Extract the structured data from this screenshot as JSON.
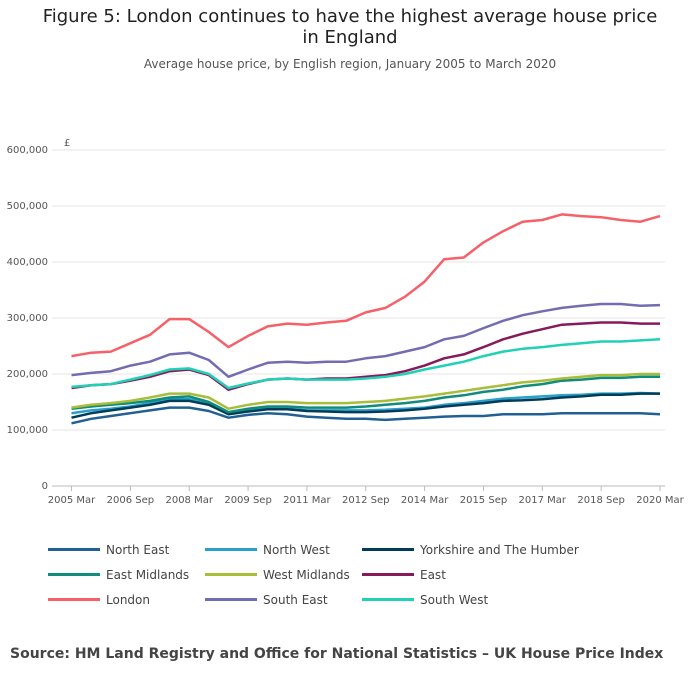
{
  "chart_data": {
    "type": "line",
    "title": "Figure 5: London continues to have the highest average house price in England",
    "subtitle": "Average house price, by English region, January 2005 to March 2020",
    "y_unit_label": "£",
    "source": "Source: HM Land Registry and Office for National Statistics – UK House Price Index",
    "x": [
      "2005-03",
      "2005-09",
      "2006-03",
      "2006-09",
      "2007-03",
      "2007-09",
      "2008-03",
      "2008-09",
      "2009-03",
      "2009-09",
      "2010-03",
      "2010-09",
      "2011-03",
      "2011-09",
      "2012-03",
      "2012-09",
      "2013-03",
      "2013-09",
      "2014-03",
      "2014-09",
      "2015-03",
      "2015-09",
      "2016-03",
      "2016-09",
      "2017-03",
      "2017-09",
      "2018-03",
      "2018-09",
      "2019-03",
      "2019-09",
      "2020-03"
    ],
    "xlim": [
      "2005-01",
      "2020-03"
    ],
    "xticks": [
      {
        "value": "2005-03",
        "label": "2005 Mar"
      },
      {
        "value": "2006-09",
        "label": "2006 Sep"
      },
      {
        "value": "2008-03",
        "label": "2008 Mar"
      },
      {
        "value": "2009-09",
        "label": "2009 Sep"
      },
      {
        "value": "2011-03",
        "label": "2011 Mar"
      },
      {
        "value": "2012-09",
        "label": "2012 Sep"
      },
      {
        "value": "2014-03",
        "label": "2014 Mar"
      },
      {
        "value": "2015-09",
        "label": "2015 Sep"
      },
      {
        "value": "2017-03",
        "label": "2017 Mar"
      },
      {
        "value": "2018-09",
        "label": "2018 Sep"
      },
      {
        "value": "2020-03",
        "label": "2020 Mar"
      }
    ],
    "ylim": [
      0,
      600000
    ],
    "yticks": [
      0,
      {
        "value": 100000,
        "label": "100,000"
      },
      {
        "value": 200000,
        "label": "200,000"
      },
      {
        "value": 300000,
        "label": "300,000"
      },
      {
        "value": 400000,
        "label": "400,000"
      },
      {
        "value": 500000,
        "label": "500,000"
      },
      {
        "value": 600000,
        "label": "600,000"
      }
    ],
    "grid": true,
    "series": [
      {
        "name": "North East",
        "color": "#206095",
        "values": [
          112000,
          120000,
          125000,
          130000,
          135000,
          140000,
          140000,
          134000,
          122000,
          127000,
          130000,
          128000,
          124000,
          122000,
          120000,
          120000,
          118000,
          120000,
          122000,
          124000,
          125000,
          125000,
          128000,
          128000,
          128000,
          130000,
          130000,
          130000,
          130000,
          130000,
          128000
        ]
      },
      {
        "name": "North West",
        "color": "#27a0cc",
        "values": [
          130000,
          135000,
          138000,
          142000,
          148000,
          155000,
          155000,
          148000,
          130000,
          135000,
          138000,
          138000,
          135000,
          135000,
          135000,
          135000,
          136000,
          138000,
          140000,
          145000,
          148000,
          152000,
          156000,
          158000,
          160000,
          162000,
          163000,
          165000,
          165000,
          166000,
          165000
        ]
      },
      {
        "name": "Yorkshire and The Humber",
        "color": "#003c57",
        "values": [
          122000,
          130000,
          135000,
          140000,
          145000,
          152000,
          152000,
          145000,
          128000,
          133000,
          137000,
          137000,
          134000,
          133000,
          132000,
          132000,
          133000,
          135000,
          138000,
          142000,
          145000,
          148000,
          152000,
          153000,
          155000,
          158000,
          160000,
          163000,
          163000,
          165000,
          165000
        ]
      },
      {
        "name": "East Midlands",
        "color": "#118c7b",
        "values": [
          138000,
          142000,
          145000,
          148000,
          152000,
          158000,
          160000,
          150000,
          132000,
          138000,
          142000,
          142000,
          140000,
          140000,
          140000,
          142000,
          145000,
          148000,
          152000,
          158000,
          162000,
          168000,
          172000,
          178000,
          182000,
          188000,
          190000,
          193000,
          193000,
          195000,
          195000
        ]
      },
      {
        "name": "West Midlands",
        "color": "#a8bd3a",
        "values": [
          140000,
          145000,
          148000,
          152000,
          158000,
          165000,
          165000,
          158000,
          138000,
          145000,
          150000,
          150000,
          148000,
          148000,
          148000,
          150000,
          152000,
          156000,
          160000,
          165000,
          170000,
          175000,
          180000,
          185000,
          188000,
          192000,
          195000,
          198000,
          198000,
          200000,
          200000
        ]
      },
      {
        "name": "East",
        "color": "#871a5b",
        "values": [
          175000,
          180000,
          182000,
          188000,
          195000,
          205000,
          208000,
          198000,
          172000,
          182000,
          190000,
          192000,
          190000,
          192000,
          192000,
          195000,
          198000,
          205000,
          215000,
          228000,
          235000,
          248000,
          262000,
          272000,
          280000,
          288000,
          290000,
          292000,
          292000,
          290000,
          290000
        ]
      },
      {
        "name": "London",
        "color": "#f66068",
        "values": [
          232000,
          238000,
          240000,
          255000,
          270000,
          298000,
          298000,
          275000,
          248000,
          268000,
          285000,
          290000,
          288000,
          292000,
          295000,
          310000,
          318000,
          338000,
          365000,
          405000,
          408000,
          435000,
          455000,
          472000,
          475000,
          485000,
          482000,
          480000,
          475000,
          472000,
          482000
        ]
      },
      {
        "name": "South East",
        "color": "#746cb1",
        "values": [
          198000,
          202000,
          205000,
          215000,
          222000,
          235000,
          238000,
          225000,
          195000,
          208000,
          220000,
          222000,
          220000,
          222000,
          222000,
          228000,
          232000,
          240000,
          248000,
          262000,
          268000,
          282000,
          295000,
          305000,
          312000,
          318000,
          322000,
          325000,
          325000,
          322000,
          323000
        ]
      },
      {
        "name": "South West",
        "color": "#22d0b6",
        "values": [
          177000,
          180000,
          182000,
          190000,
          198000,
          208000,
          210000,
          200000,
          175000,
          183000,
          190000,
          192000,
          190000,
          190000,
          190000,
          192000,
          195000,
          200000,
          208000,
          215000,
          222000,
          232000,
          240000,
          245000,
          248000,
          252000,
          255000,
          258000,
          258000,
          260000,
          262000
        ]
      }
    ]
  }
}
